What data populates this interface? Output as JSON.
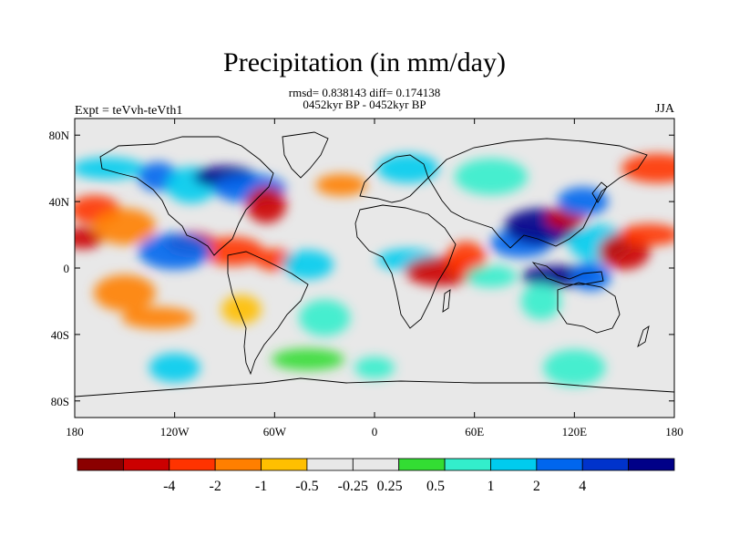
{
  "header": {
    "title": "Precipitation (in mm/day)",
    "stats": "rmsd= 0.838143 diff= 0.174138",
    "period": "0452kyr BP - 0452kyr BP",
    "experiment": "Expt = teVvh-teVth1",
    "season": "JJA"
  },
  "axes": {
    "y_ticks": [
      {
        "value": 80,
        "label": "80N"
      },
      {
        "value": 40,
        "label": "40N"
      },
      {
        "value": 0,
        "label": "0"
      },
      {
        "value": -40,
        "label": "40S"
      },
      {
        "value": -80,
        "label": "80S"
      }
    ],
    "x_ticks": [
      {
        "value": -180,
        "label": "180"
      },
      {
        "value": -120,
        "label": "120W"
      },
      {
        "value": -60,
        "label": "60W"
      },
      {
        "value": 0,
        "label": "0"
      },
      {
        "value": 60,
        "label": "60E"
      },
      {
        "value": 120,
        "label": "120E"
      },
      {
        "value": 180,
        "label": "180"
      }
    ],
    "lon_range": [
      -180,
      180
    ],
    "lat_range": [
      -90,
      90
    ]
  },
  "colorbar": {
    "colors": [
      "#8b0000",
      "#cc0000",
      "#ff3300",
      "#ff7f00",
      "#ffbf00",
      "#e8e8e8",
      "#e8e8e8",
      "#33dd33",
      "#33eecc",
      "#00ccee",
      "#0066ee",
      "#0033cc",
      "#000088"
    ],
    "labels": [
      "-4",
      "-2",
      "-1",
      "-0.5",
      "-0.25",
      "0.25",
      "0.5",
      "1",
      "2",
      "4"
    ]
  },
  "anomaly_blobs": [
    {
      "lon": -175,
      "lat": 18,
      "level": -2
    },
    {
      "lon": -168,
      "lat": 35,
      "level": -1
    },
    {
      "lon": -150,
      "lat": 25,
      "level": -0.5
    },
    {
      "lon": -160,
      "lat": 60,
      "level": 1
    },
    {
      "lon": -130,
      "lat": 55,
      "level": 2
    },
    {
      "lon": -110,
      "lat": 50,
      "level": 1
    },
    {
      "lon": -90,
      "lat": 55,
      "level": 4
    },
    {
      "lon": -75,
      "lat": 48,
      "level": 2
    },
    {
      "lon": -65,
      "lat": 38,
      "level": -2
    },
    {
      "lon": -110,
      "lat": 15,
      "level": -2
    },
    {
      "lon": -85,
      "lat": 10,
      "level": -1
    },
    {
      "lon": -120,
      "lat": 10,
      "level": 2
    },
    {
      "lon": -60,
      "lat": 5,
      "level": -1
    },
    {
      "lon": -40,
      "lat": 2,
      "level": 1
    },
    {
      "lon": -150,
      "lat": -15,
      "level": -0.5
    },
    {
      "lon": -130,
      "lat": -30,
      "level": -0.5
    },
    {
      "lon": -80,
      "lat": -25,
      "level": -0.25
    },
    {
      "lon": -30,
      "lat": -30,
      "level": 0.5
    },
    {
      "lon": 20,
      "lat": 5,
      "level": 1
    },
    {
      "lon": 40,
      "lat": -2,
      "level": -2
    },
    {
      "lon": 55,
      "lat": 5,
      "level": -1
    },
    {
      "lon": 70,
      "lat": -5,
      "level": 0.5
    },
    {
      "lon": 88,
      "lat": 15,
      "level": 2
    },
    {
      "lon": 100,
      "lat": 25,
      "level": 4
    },
    {
      "lon": 115,
      "lat": 30,
      "level": -2
    },
    {
      "lon": 125,
      "lat": 40,
      "level": 2
    },
    {
      "lon": 135,
      "lat": 15,
      "level": 1
    },
    {
      "lon": 110,
      "lat": -5,
      "level": 4
    },
    {
      "lon": 130,
      "lat": -5,
      "level": 2
    },
    {
      "lon": 150,
      "lat": 10,
      "level": -2
    },
    {
      "lon": 165,
      "lat": 20,
      "level": -1
    },
    {
      "lon": 170,
      "lat": 60,
      "level": -1
    },
    {
      "lon": 100,
      "lat": -20,
      "level": 0.5
    },
    {
      "lon": -20,
      "lat": 50,
      "level": -0.5
    },
    {
      "lon": 20,
      "lat": 60,
      "level": 1
    },
    {
      "lon": 70,
      "lat": 55,
      "level": 0.5
    },
    {
      "lon": 0,
      "lat": -60,
      "level": 0.5
    },
    {
      "lon": -120,
      "lat": -60,
      "level": 1
    },
    {
      "lon": 120,
      "lat": -60,
      "level": 0.5
    },
    {
      "lon": -40,
      "lat": -55,
      "level": 0.25
    }
  ]
}
